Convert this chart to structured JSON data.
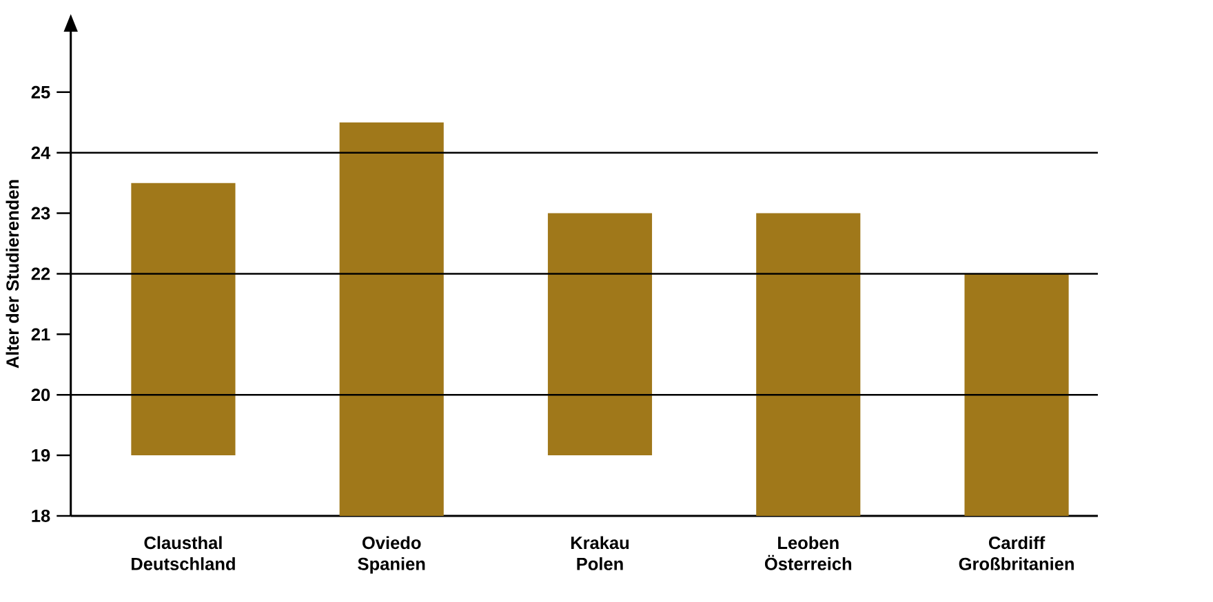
{
  "chart_data": {
    "type": "bar",
    "ylabel": "Alter der Studierenden",
    "categories": [
      "Clausthal Deutschland",
      "Oviedo Spanien",
      "Krakau Polen",
      "Leoben Österreich",
      "Cardiff Großbritanien"
    ],
    "color": "#a0781a",
    "values": [
      4.5,
      6.5,
      4,
      5,
      4
    ],
    "base": [
      19,
      18,
      19,
      18,
      18
    ],
    "ylim": [
      18,
      26
    ],
    "yticks": [
      18,
      19,
      20,
      21,
      22,
      23,
      24,
      25
    ],
    "ref_lines": [
      {
        "axis": "y",
        "value": 20
      },
      {
        "axis": "y",
        "value": 22
      },
      {
        "axis": "y",
        "value": 24
      }
    ]
  }
}
